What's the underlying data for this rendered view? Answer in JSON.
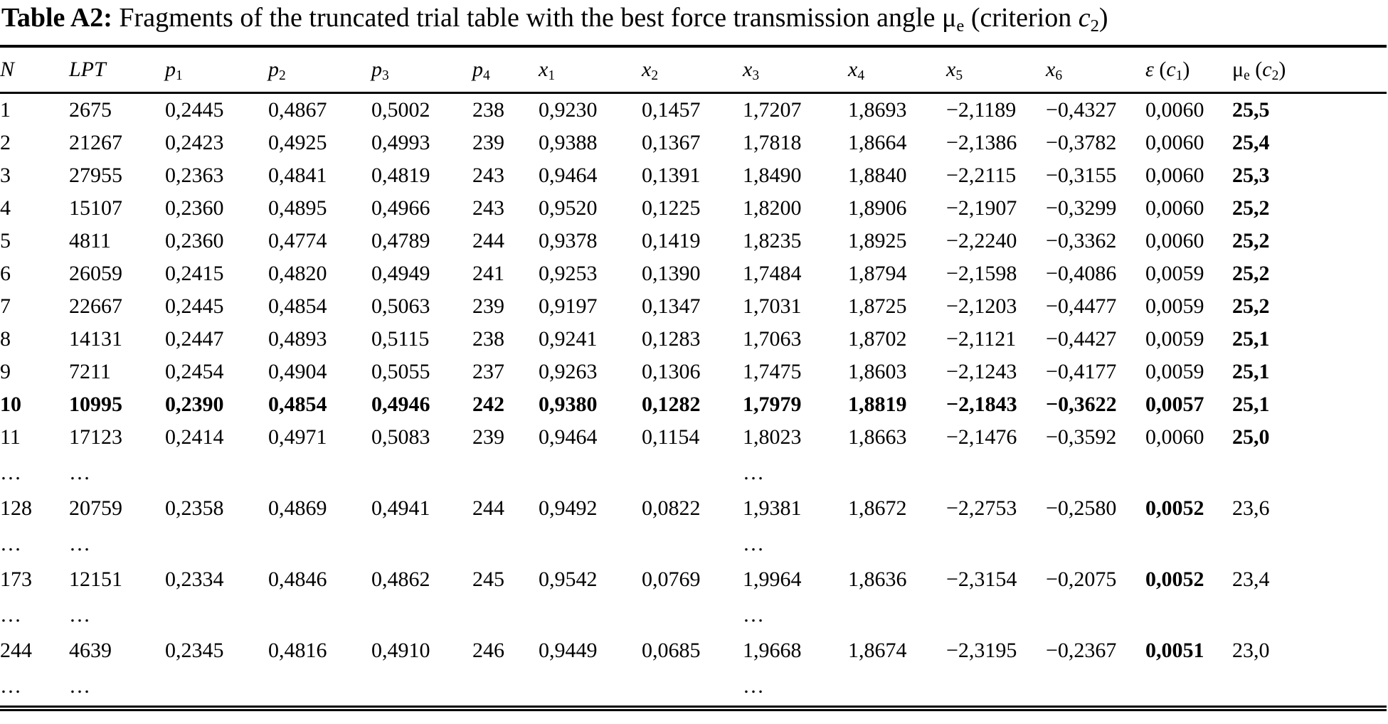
{
  "colors": {
    "text": "#000000",
    "background": "#ffffff"
  },
  "title": {
    "segments": [
      {
        "t": "Table A2:",
        "b": 1
      },
      {
        "t": " Fragments of the truncated trial table with the best force transmission angle "
      },
      {
        "t": "μ"
      },
      {
        "t": "e",
        "sub": 1
      },
      {
        "t": " (criterion "
      },
      {
        "t": "c",
        "i": 1
      },
      {
        "t": "2",
        "sub": 1
      },
      {
        "t": ")"
      }
    ]
  },
  "table": {
    "headers": [
      {
        "id": "n",
        "segments": [
          {
            "t": "N",
            "i": 1
          }
        ]
      },
      {
        "id": "lpt",
        "segments": [
          {
            "t": "LPT",
            "i": 1
          }
        ]
      },
      {
        "id": "p1",
        "segments": [
          {
            "t": "p",
            "i": 1
          },
          {
            "t": "1",
            "sub": 1
          }
        ]
      },
      {
        "id": "p2",
        "segments": [
          {
            "t": "p",
            "i": 1
          },
          {
            "t": "2",
            "sub": 1
          }
        ]
      },
      {
        "id": "p3",
        "segments": [
          {
            "t": "p",
            "i": 1
          },
          {
            "t": "3",
            "sub": 1
          }
        ]
      },
      {
        "id": "p4",
        "segments": [
          {
            "t": "p",
            "i": 1
          },
          {
            "t": "4",
            "sub": 1
          }
        ]
      },
      {
        "id": "x1",
        "segments": [
          {
            "t": "x",
            "i": 1
          },
          {
            "t": "1",
            "sub": 1
          }
        ]
      },
      {
        "id": "x2",
        "segments": [
          {
            "t": "x",
            "i": 1
          },
          {
            "t": "2",
            "sub": 1
          }
        ]
      },
      {
        "id": "x3",
        "segments": [
          {
            "t": "x",
            "i": 1
          },
          {
            "t": "3",
            "sub": 1
          }
        ]
      },
      {
        "id": "x4",
        "segments": [
          {
            "t": "x",
            "i": 1
          },
          {
            "t": "4",
            "sub": 1
          }
        ]
      },
      {
        "id": "x5",
        "segments": [
          {
            "t": "x",
            "i": 1
          },
          {
            "t": "5",
            "sub": 1
          }
        ]
      },
      {
        "id": "x6",
        "segments": [
          {
            "t": "x",
            "i": 1
          },
          {
            "t": "6",
            "sub": 1
          }
        ]
      },
      {
        "id": "eps",
        "segments": [
          {
            "t": "ε",
            "i": 1
          },
          {
            "t": " ("
          },
          {
            "t": "c",
            "i": 1
          },
          {
            "t": "1",
            "sub": 1
          },
          {
            "t": ")"
          }
        ]
      },
      {
        "id": "mu",
        "segments": [
          {
            "t": "μ"
          },
          {
            "t": "e",
            "sub": 1
          },
          {
            "t": " ("
          },
          {
            "t": "c",
            "i": 1
          },
          {
            "t": "2",
            "sub": 1
          },
          {
            "t": ")"
          }
        ]
      }
    ],
    "rows": [
      {
        "bold": "mu",
        "cells": [
          "1",
          "2675",
          "0,2445",
          "0,4867",
          "0,5002",
          "238",
          "0,9230",
          "0,1457",
          "1,7207",
          "1,8693",
          "−2,1189",
          "−0,4327",
          "0,0060",
          "25,5"
        ]
      },
      {
        "bold": "mu",
        "cells": [
          "2",
          "21267",
          "0,2423",
          "0,4925",
          "0,4993",
          "239",
          "0,9388",
          "0,1367",
          "1,7818",
          "1,8664",
          "−2,1386",
          "−0,3782",
          "0,0060",
          "25,4"
        ]
      },
      {
        "bold": "mu",
        "cells": [
          "3",
          "27955",
          "0,2363",
          "0,4841",
          "0,4819",
          "243",
          "0,9464",
          "0,1391",
          "1,8490",
          "1,8840",
          "−2,2115",
          "−0,3155",
          "0,0060",
          "25,3"
        ]
      },
      {
        "bold": "mu",
        "cells": [
          "4",
          "15107",
          "0,2360",
          "0,4895",
          "0,4966",
          "243",
          "0,9520",
          "0,1225",
          "1,8200",
          "1,8906",
          "−2,1907",
          "−0,3299",
          "0,0060",
          "25,2"
        ]
      },
      {
        "bold": "mu",
        "cells": [
          "5",
          "4811",
          "0,2360",
          "0,4774",
          "0,4789",
          "244",
          "0,9378",
          "0,1419",
          "1,8235",
          "1,8925",
          "−2,2240",
          "−0,3362",
          "0,0060",
          "25,2"
        ]
      },
      {
        "bold": "mu",
        "cells": [
          "6",
          "26059",
          "0,2415",
          "0,4820",
          "0,4949",
          "241",
          "0,9253",
          "0,1390",
          "1,7484",
          "1,8794",
          "−2,1598",
          "−0,4086",
          "0,0059",
          "25,2"
        ]
      },
      {
        "bold": "mu",
        "cells": [
          "7",
          "22667",
          "0,2445",
          "0,4854",
          "0,5063",
          "239",
          "0,9197",
          "0,1347",
          "1,7031",
          "1,8725",
          "−2,1203",
          "−0,4477",
          "0,0059",
          "25,2"
        ]
      },
      {
        "bold": "mu",
        "cells": [
          "8",
          "14131",
          "0,2447",
          "0,4893",
          "0,5115",
          "238",
          "0,9241",
          "0,1283",
          "1,7063",
          "1,8702",
          "−2,1121",
          "−0,4427",
          "0,0059",
          "25,1"
        ]
      },
      {
        "bold": "mu",
        "cells": [
          "9",
          "7211",
          "0,2454",
          "0,4904",
          "0,5055",
          "237",
          "0,9263",
          "0,1306",
          "1,7475",
          "1,8603",
          "−2,1243",
          "−0,4177",
          "0,0059",
          "25,1"
        ]
      },
      {
        "bold": "row",
        "cells": [
          "10",
          "10995",
          "0,2390",
          "0,4854",
          "0,4946",
          "242",
          "0,9380",
          "0,1282",
          "1,7979",
          "1,8819",
          "−2,1843",
          "−0,3622",
          "0,0057",
          "25,1"
        ]
      },
      {
        "bold": "mu",
        "cells": [
          "11",
          "17123",
          "0,2414",
          "0,4971",
          "0,5083",
          "239",
          "0,9464",
          "0,1154",
          "1,8023",
          "1,8663",
          "−2,1476",
          "−0,3592",
          "0,0060",
          "25,0"
        ]
      },
      {
        "type": "dots",
        "cells": [
          "…",
          "…",
          "",
          "",
          "",
          "",
          "",
          "",
          "…",
          "",
          "",
          "",
          "",
          ""
        ]
      },
      {
        "bold": "eps",
        "cells": [
          "128",
          "20759",
          "0,2358",
          "0,4869",
          "0,4941",
          "244",
          "0,9492",
          "0,0822",
          "1,9381",
          "1,8672",
          "−2,2753",
          "−0,2580",
          "0,0052",
          "23,6"
        ]
      },
      {
        "type": "dots",
        "cells": [
          "…",
          "…",
          "",
          "",
          "",
          "",
          "",
          "",
          "…",
          "",
          "",
          "",
          "",
          ""
        ]
      },
      {
        "bold": "eps",
        "cells": [
          "173",
          "12151",
          "0,2334",
          "0,4846",
          "0,4862",
          "245",
          "0,9542",
          "0,0769",
          "1,9964",
          "1,8636",
          "−2,3154",
          "−0,2075",
          "0,0052",
          "23,4"
        ]
      },
      {
        "type": "dots",
        "cells": [
          "…",
          "…",
          "",
          "",
          "",
          "",
          "",
          "",
          "…",
          "",
          "",
          "",
          "",
          ""
        ]
      },
      {
        "bold": "eps",
        "cells": [
          "244",
          "4639",
          "0,2345",
          "0,4816",
          "0,4910",
          "246",
          "0,9449",
          "0,0685",
          "1,9668",
          "1,8674",
          "−2,3195",
          "−0,2367",
          "0,0051",
          "23,0"
        ]
      },
      {
        "type": "dots",
        "cells": [
          "…",
          "…",
          "",
          "",
          "",
          "",
          "",
          "",
          "…",
          "",
          "",
          "",
          "",
          ""
        ]
      }
    ]
  }
}
